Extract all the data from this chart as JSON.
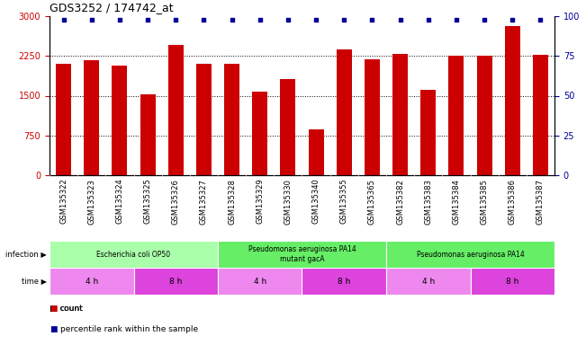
{
  "title": "GDS3252 / 174742_at",
  "samples": [
    "GSM135322",
    "GSM135323",
    "GSM135324",
    "GSM135325",
    "GSM135326",
    "GSM135327",
    "GSM135328",
    "GSM135329",
    "GSM135330",
    "GSM135340",
    "GSM135355",
    "GSM135365",
    "GSM135382",
    "GSM135383",
    "GSM135384",
    "GSM135385",
    "GSM135386",
    "GSM135387"
  ],
  "counts": [
    2100,
    2175,
    2060,
    1530,
    2450,
    2100,
    2100,
    1580,
    1810,
    860,
    2380,
    2185,
    2280,
    1610,
    2250,
    2250,
    2820,
    2270
  ],
  "percentile_ranks": [
    98,
    98,
    98,
    98,
    98,
    98,
    98,
    98,
    98,
    98,
    98,
    98,
    98,
    98,
    98,
    98,
    98,
    98
  ],
  "bar_color": "#cc0000",
  "dot_color": "#000099",
  "ylim_left": [
    0,
    3000
  ],
  "ylim_right": [
    0,
    100
  ],
  "yticks_left": [
    0,
    750,
    1500,
    2250,
    3000
  ],
  "yticks_right": [
    0,
    25,
    50,
    75,
    100
  ],
  "infection_groups": [
    {
      "label": "Escherichia coli OP50",
      "start": 0,
      "end": 6,
      "color": "#aaffaa"
    },
    {
      "label": "Pseudomonas aeruginosa PA14\nmutant gacA",
      "start": 6,
      "end": 12,
      "color": "#66ee66"
    },
    {
      "label": "Pseudomonas aeruginosa PA14",
      "start": 12,
      "end": 18,
      "color": "#66ee66"
    }
  ],
  "time_groups": [
    {
      "label": "4 h",
      "start": 0,
      "end": 3,
      "color": "#ee88ee"
    },
    {
      "label": "8 h",
      "start": 3,
      "end": 6,
      "color": "#dd44dd"
    },
    {
      "label": "4 h",
      "start": 6,
      "end": 9,
      "color": "#ee88ee"
    },
    {
      "label": "8 h",
      "start": 9,
      "end": 12,
      "color": "#dd44dd"
    },
    {
      "label": "4 h",
      "start": 12,
      "end": 15,
      "color": "#ee88ee"
    },
    {
      "label": "8 h",
      "start": 15,
      "end": 18,
      "color": "#dd44dd"
    }
  ],
  "bg_color": "#ffffff",
  "grid_color": "#000000",
  "tick_label_color_left": "#cc0000",
  "tick_label_color_right": "#000099",
  "sample_bg_color": "#cccccc",
  "bar_width": 0.55,
  "title_fontsize": 9,
  "label_fontsize": 7,
  "tick_fontsize": 7,
  "sample_fontsize": 6
}
